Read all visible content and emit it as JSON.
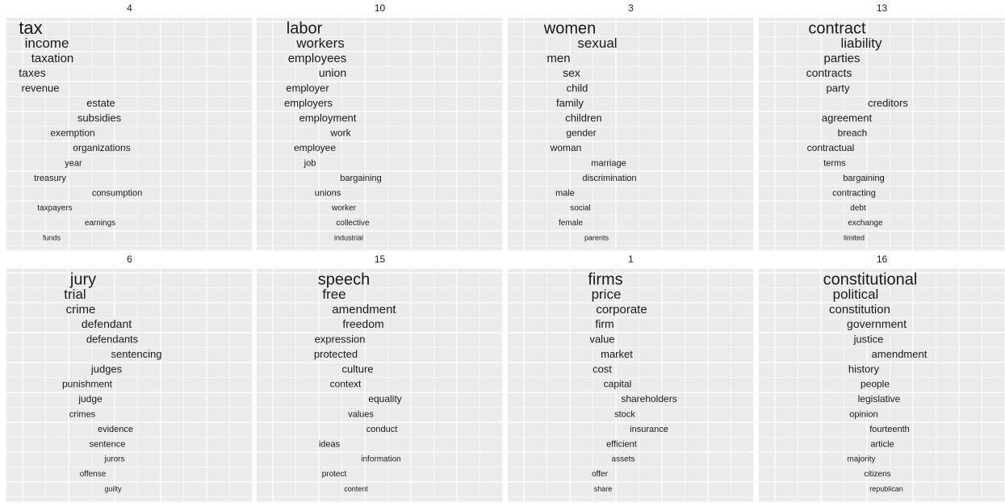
{
  "panels": [
    {
      "title": "4",
      "words": [
        "tax",
        "income",
        "taxation",
        "taxes",
        "revenue",
        "estate",
        "subsidies",
        "exemption",
        "organizations",
        "year",
        "treasury",
        "consumption",
        "taxpayers",
        "earnings",
        "funds"
      ]
    },
    {
      "title": "10",
      "words": [
        "labor",
        "workers",
        "employees",
        "union",
        "employer",
        "employers",
        "employment",
        "work",
        "employee",
        "job",
        "bargaining",
        "unions",
        "worker",
        "collective",
        "industrial"
      ]
    },
    {
      "title": "3",
      "words": [
        "women",
        "sexual",
        "men",
        "sex",
        "child",
        "family",
        "children",
        "gender",
        "woman",
        "marriage",
        "discrimination",
        "male",
        "social",
        "female",
        "parents"
      ]
    },
    {
      "title": "13",
      "words": [
        "contract",
        "liability",
        "parties",
        "contracts",
        "party",
        "creditors",
        "agreement",
        "breach",
        "contractual",
        "terms",
        "bargaining",
        "contracting",
        "debt",
        "exchange",
        "limited"
      ]
    },
    {
      "title": "6",
      "words": [
        "jury",
        "trial",
        "crime",
        "defendant",
        "defendants",
        "sentencing",
        "judges",
        "punishment",
        "judge",
        "crimes",
        "evidence",
        "sentence",
        "jurors",
        "offense",
        "guilty"
      ]
    },
    {
      "title": "15",
      "words": [
        "speech",
        "free",
        "amendment",
        "freedom",
        "expression",
        "protected",
        "culture",
        "context",
        "equality",
        "values",
        "conduct",
        "ideas",
        "information",
        "protect",
        "content"
      ]
    },
    {
      "title": "1",
      "words": [
        "firms",
        "price",
        "corporate",
        "firm",
        "value",
        "market",
        "cost",
        "capital",
        "shareholders",
        "stock",
        "insurance",
        "efficient",
        "assets",
        "offer",
        "share"
      ]
    },
    {
      "title": "16",
      "words": [
        "constitutional",
        "political",
        "constitution",
        "government",
        "justice",
        "amendment",
        "history",
        "people",
        "legislative",
        "opinion",
        "fourteenth",
        "article",
        "majority",
        "citizens",
        "republican"
      ]
    }
  ]
}
